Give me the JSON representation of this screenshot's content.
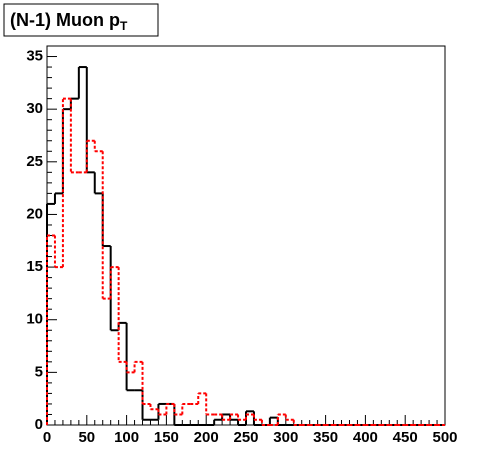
{
  "chart_data": {
    "type": "histogram",
    "title": {
      "text": "(N-1) Muon p",
      "subscript": "T"
    },
    "bins": [
      0,
      10,
      20,
      30,
      40,
      50,
      60,
      70,
      80,
      90,
      100,
      110,
      120,
      130,
      140,
      150,
      160,
      170,
      180,
      190,
      200,
      210,
      220,
      230,
      240,
      250,
      260,
      270,
      280,
      290,
      300,
      310,
      320,
      330,
      340,
      350,
      360,
      370,
      380,
      390,
      400,
      410,
      420,
      430,
      440,
      450,
      460,
      470,
      480,
      490,
      500
    ],
    "series": [
      {
        "color": "#000000",
        "dash": false,
        "values": [
          21,
          22,
          30,
          31,
          34,
          24,
          22,
          17,
          9,
          9.7,
          3.3,
          3.3,
          0.5,
          0.5,
          2,
          2,
          0,
          0,
          0,
          0,
          0,
          0.5,
          1,
          0.5,
          0,
          1.3,
          0,
          0,
          0.7,
          0,
          0,
          0,
          0,
          0,
          0,
          0,
          0,
          0,
          0,
          0,
          0,
          0,
          0,
          0,
          0,
          0,
          0,
          0,
          0,
          0
        ]
      },
      {
        "color": "#ff0000",
        "dash": true,
        "values": [
          18,
          15,
          31,
          24,
          24,
          27,
          26,
          12,
          15,
          6,
          5,
          6,
          2,
          1.5,
          1,
          2,
          1,
          2,
          2,
          3,
          1,
          1,
          0.5,
          1,
          0.5,
          1,
          0.5,
          0,
          0,
          1,
          0.5,
          0,
          0,
          0,
          0,
          0,
          0,
          0,
          0,
          0,
          0,
          0,
          0,
          0,
          0,
          0,
          0,
          0,
          0,
          0
        ]
      }
    ],
    "xlim": [
      0,
      500
    ],
    "xticks": [
      0,
      50,
      100,
      150,
      200,
      250,
      300,
      350,
      400,
      450,
      500
    ],
    "ylim": [
      0,
      36
    ],
    "yticks": [
      0,
      5,
      10,
      15,
      20,
      25,
      30,
      35
    ]
  }
}
